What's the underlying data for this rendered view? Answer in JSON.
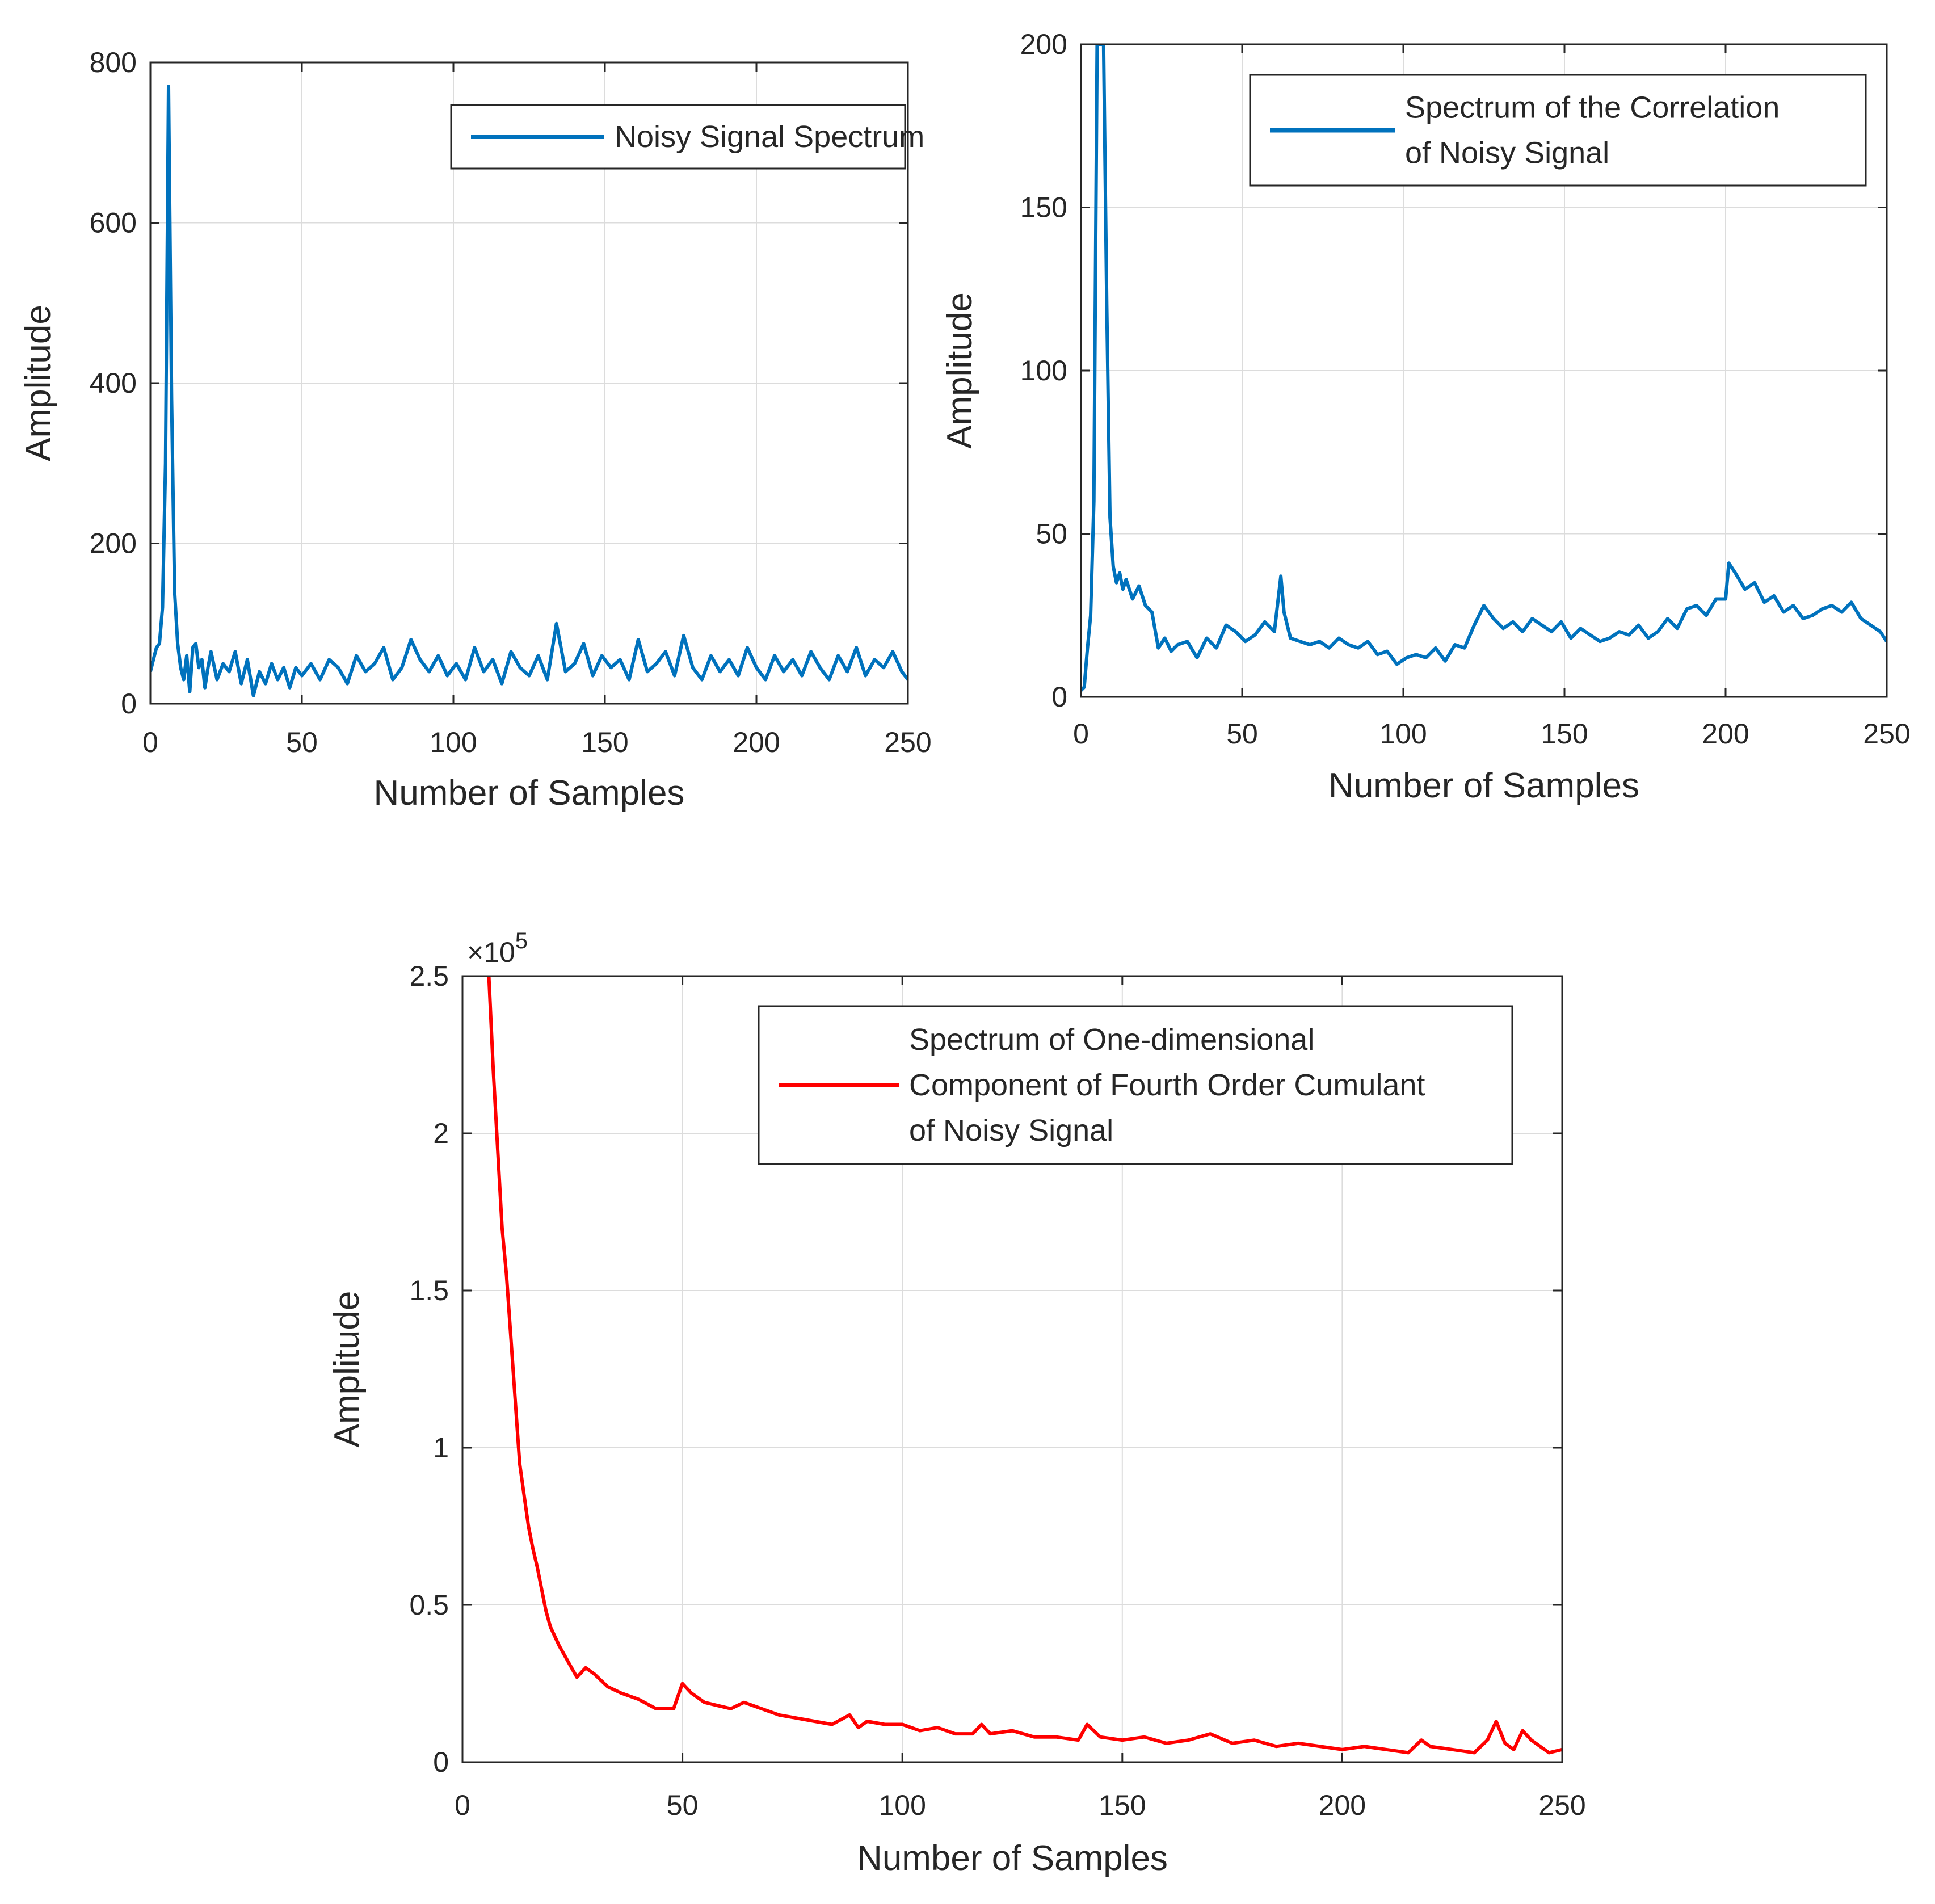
{
  "chart_data": [
    {
      "id": "noisy-signal-spectrum",
      "type": "line",
      "title": "",
      "xlabel": "Number of Samples",
      "ylabel": "Amplitude",
      "xlim": [
        0,
        250
      ],
      "ylim": [
        0,
        800
      ],
      "xticks": [
        0,
        50,
        100,
        150,
        200,
        250
      ],
      "xtick_labels": [
        "0",
        "50",
        "100",
        "150",
        "200",
        "250"
      ],
      "yticks": [
        0,
        200,
        400,
        600,
        800
      ],
      "ytick_labels": [
        "0",
        "200",
        "400",
        "600",
        "800"
      ],
      "exponent_label": "",
      "grid": true,
      "legend_position": "top-right",
      "series": [
        {
          "name": "Noisy Signal Spectrum",
          "legend_lines": [
            "Noisy Signal Spectrum"
          ],
          "color": "#0072BD",
          "x": [
            0,
            1,
            2,
            3,
            4,
            5,
            6,
            7,
            8,
            9,
            10,
            11,
            12,
            13,
            14,
            15,
            16,
            17,
            18,
            19,
            20,
            22,
            24,
            26,
            28,
            30,
            32,
            34,
            36,
            38,
            40,
            42,
            44,
            46,
            48,
            50,
            53,
            56,
            59,
            62,
            65,
            68,
            71,
            74,
            77,
            80,
            83,
            86,
            89,
            92,
            95,
            98,
            101,
            104,
            107,
            110,
            113,
            116,
            119,
            122,
            125,
            128,
            131,
            134,
            137,
            140,
            143,
            146,
            149,
            152,
            155,
            158,
            161,
            164,
            167,
            170,
            173,
            176,
            179,
            182,
            185,
            188,
            191,
            194,
            197,
            200,
            203,
            206,
            209,
            212,
            215,
            218,
            221,
            224,
            227,
            230,
            233,
            236,
            239,
            242,
            245,
            248,
            250
          ],
          "y": [
            40,
            55,
            70,
            75,
            120,
            300,
            770,
            380,
            140,
            75,
            45,
            30,
            60,
            15,
            70,
            75,
            45,
            55,
            20,
            45,
            65,
            30,
            50,
            40,
            65,
            25,
            55,
            10,
            40,
            25,
            50,
            30,
            45,
            20,
            45,
            35,
            50,
            30,
            55,
            45,
            25,
            60,
            40,
            50,
            70,
            30,
            45,
            80,
            55,
            40,
            60,
            35,
            50,
            30,
            70,
            40,
            55,
            25,
            65,
            45,
            35,
            60,
            30,
            100,
            40,
            50,
            75,
            35,
            60,
            45,
            55,
            30,
            80,
            40,
            50,
            65,
            35,
            85,
            45,
            30,
            60,
            40,
            55,
            35,
            70,
            45,
            30,
            60,
            40,
            55,
            35,
            65,
            45,
            30,
            60,
            40,
            70,
            35,
            55,
            45,
            65,
            40,
            30
          ]
        }
      ]
    },
    {
      "id": "correlation-spectrum",
      "type": "line",
      "title": "",
      "xlabel": "Number of Samples",
      "ylabel": "Amplitude",
      "xlim": [
        0,
        250
      ],
      "ylim": [
        0,
        200
      ],
      "xticks": [
        0,
        50,
        100,
        150,
        200,
        250
      ],
      "xtick_labels": [
        "0",
        "50",
        "100",
        "150",
        "200",
        "250"
      ],
      "yticks": [
        0,
        50,
        100,
        150,
        200
      ],
      "ytick_labels": [
        "0",
        "50",
        "100",
        "150",
        "200"
      ],
      "exponent_label": "",
      "grid": true,
      "legend_position": "top-right",
      "series": [
        {
          "name": "Spectrum of the Correlation of Noisy Signal",
          "legend_lines": [
            "Spectrum of the Correlation",
            "of Noisy Signal"
          ],
          "color": "#0072BD",
          "x": [
            0,
            1,
            2,
            3,
            4,
            5,
            6,
            7,
            8,
            9,
            10,
            11,
            12,
            13,
            14,
            16,
            18,
            20,
            22,
            24,
            26,
            28,
            30,
            33,
            36,
            39,
            42,
            45,
            48,
            51,
            54,
            57,
            60,
            62,
            63,
            65,
            68,
            71,
            74,
            77,
            80,
            83,
            86,
            89,
            92,
            95,
            98,
            101,
            104,
            107,
            110,
            113,
            116,
            119,
            122,
            125,
            128,
            131,
            134,
            137,
            140,
            143,
            146,
            149,
            152,
            155,
            158,
            161,
            164,
            167,
            170,
            173,
            176,
            179,
            182,
            185,
            188,
            191,
            194,
            197,
            200,
            201,
            203,
            206,
            209,
            212,
            215,
            218,
            221,
            224,
            227,
            230,
            233,
            236,
            239,
            242,
            245,
            248,
            250
          ],
          "y": [
            2,
            3,
            15,
            25,
            60,
            200,
            200,
            200,
            120,
            55,
            40,
            35,
            38,
            33,
            36,
            30,
            34,
            28,
            26,
            15,
            18,
            14,
            16,
            17,
            12,
            18,
            15,
            22,
            20,
            17,
            19,
            23,
            20,
            37,
            26,
            18,
            17,
            16,
            17,
            15,
            18,
            16,
            15,
            17,
            13,
            14,
            10,
            12,
            13,
            12,
            15,
            11,
            16,
            15,
            22,
            28,
            24,
            21,
            23,
            20,
            24,
            22,
            20,
            23,
            18,
            21,
            19,
            17,
            18,
            20,
            19,
            22,
            18,
            20,
            24,
            21,
            27,
            28,
            25,
            30,
            30,
            41,
            38,
            33,
            35,
            29,
            31,
            26,
            28,
            24,
            25,
            27,
            28,
            26,
            29,
            24,
            22,
            20,
            17
          ]
        }
      ]
    },
    {
      "id": "fourth-order-cumulant-spectrum",
      "type": "line",
      "title": "",
      "xlabel": "Number of Samples",
      "ylabel": "Amplitude",
      "xlim": [
        0,
        250
      ],
      "ylim": [
        0,
        2.5
      ],
      "xticks": [
        0,
        50,
        100,
        150,
        200,
        250
      ],
      "xtick_labels": [
        "0",
        "50",
        "100",
        "150",
        "200",
        "250"
      ],
      "yticks": [
        0,
        0.5,
        1,
        1.5,
        2,
        2.5
      ],
      "ytick_labels": [
        "0",
        "0.5",
        "1",
        "1.5",
        "2",
        "2.5"
      ],
      "exponent_label": "×10",
      "exponent_power": "5",
      "grid": true,
      "legend_position": "top-right",
      "series": [
        {
          "name": "Spectrum of One-dimensional Component of Fourth Order Cumulant of Noisy Signal",
          "legend_lines": [
            "Spectrum of One-dimensional",
            "Component of Fourth Order Cumulant",
            "of Noisy Signal"
          ],
          "color": "#FF0000",
          "x": [
            6,
            7,
            8,
            9,
            10,
            11,
            12,
            13,
            14,
            15,
            16,
            17,
            18,
            19,
            20,
            22,
            24,
            26,
            28,
            30,
            33,
            36,
            40,
            44,
            48,
            50,
            52,
            55,
            58,
            61,
            64,
            68,
            72,
            76,
            80,
            84,
            88,
            90,
            92,
            96,
            100,
            104,
            108,
            112,
            116,
            118,
            120,
            125,
            130,
            135,
            140,
            142,
            145,
            150,
            155,
            160,
            165,
            170,
            175,
            180,
            185,
            190,
            195,
            200,
            205,
            210,
            215,
            218,
            220,
            225,
            230,
            233,
            235,
            237,
            239,
            241,
            243,
            245,
            247,
            250
          ],
          "y": [
            2.5,
            2.2,
            1.95,
            1.7,
            1.55,
            1.35,
            1.15,
            0.95,
            0.85,
            0.75,
            0.68,
            0.62,
            0.55,
            0.48,
            0.43,
            0.37,
            0.32,
            0.27,
            0.3,
            0.28,
            0.24,
            0.22,
            0.2,
            0.17,
            0.17,
            0.25,
            0.22,
            0.19,
            0.18,
            0.17,
            0.19,
            0.17,
            0.15,
            0.14,
            0.13,
            0.12,
            0.15,
            0.11,
            0.13,
            0.12,
            0.12,
            0.1,
            0.11,
            0.09,
            0.09,
            0.12,
            0.09,
            0.1,
            0.08,
            0.08,
            0.07,
            0.12,
            0.08,
            0.07,
            0.08,
            0.06,
            0.07,
            0.09,
            0.06,
            0.07,
            0.05,
            0.06,
            0.05,
            0.04,
            0.05,
            0.04,
            0.03,
            0.07,
            0.05,
            0.04,
            0.03,
            0.07,
            0.13,
            0.06,
            0.04,
            0.1,
            0.07,
            0.05,
            0.03,
            0.04
          ]
        }
      ]
    }
  ]
}
